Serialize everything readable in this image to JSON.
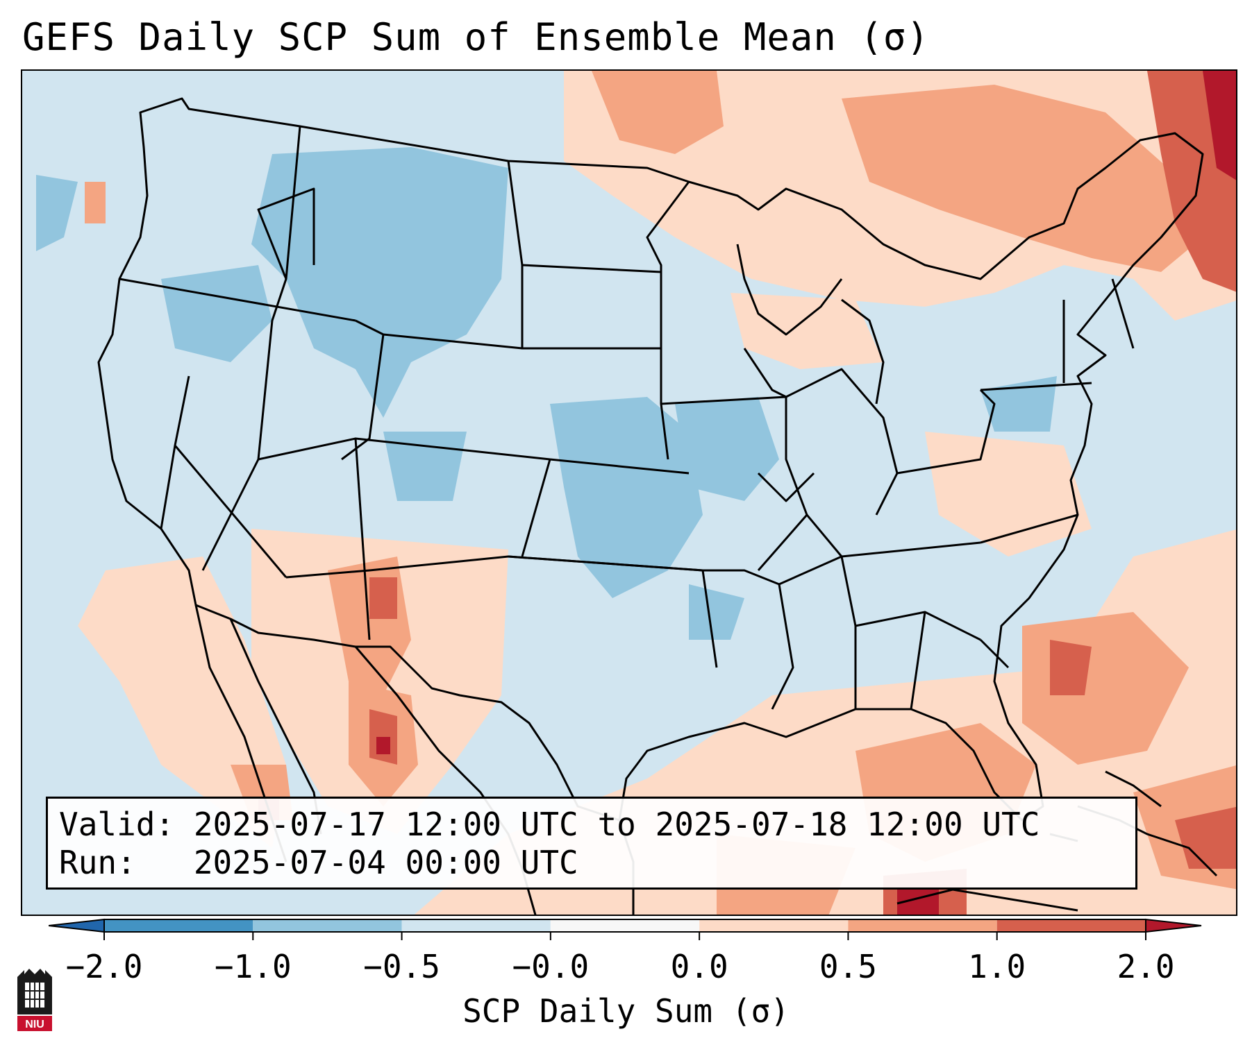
{
  "title": "GEFS Daily SCP Sum of Ensemble Mean (σ)",
  "info": {
    "valid_line": "Valid: 2025-07-17 12:00 UTC to 2025-07-18 12:00 UTC",
    "run_line": "Run:   2025-07-04 00:00 UTC"
  },
  "colorbar": {
    "label": "SCP Daily Sum (σ)",
    "tick_labels": [
      "−2.0",
      "−1.0",
      "−0.5",
      "−0.0",
      "0.0",
      "0.5",
      "1.0",
      "2.0"
    ],
    "bins": [
      {
        "from": -2.0,
        "to": -1.0,
        "color": "#4393c3"
      },
      {
        "from": -1.0,
        "to": -0.5,
        "color": "#92c5de"
      },
      {
        "from": -0.5,
        "to": -0.0,
        "color": "#d1e5f0"
      },
      {
        "from": -0.0,
        "to": 0.0,
        "color": "#f7f7f7"
      },
      {
        "from": 0.0,
        "to": 0.5,
        "color": "#fddbc7"
      },
      {
        "from": 0.5,
        "to": 1.0,
        "color": "#f4a582"
      },
      {
        "from": 1.0,
        "to": 2.0,
        "color": "#d6604d"
      }
    ],
    "under_color": "#2166ac",
    "over_color": "#b2182b"
  },
  "logo": {
    "text": "NIU",
    "color": "#c8102e"
  }
}
